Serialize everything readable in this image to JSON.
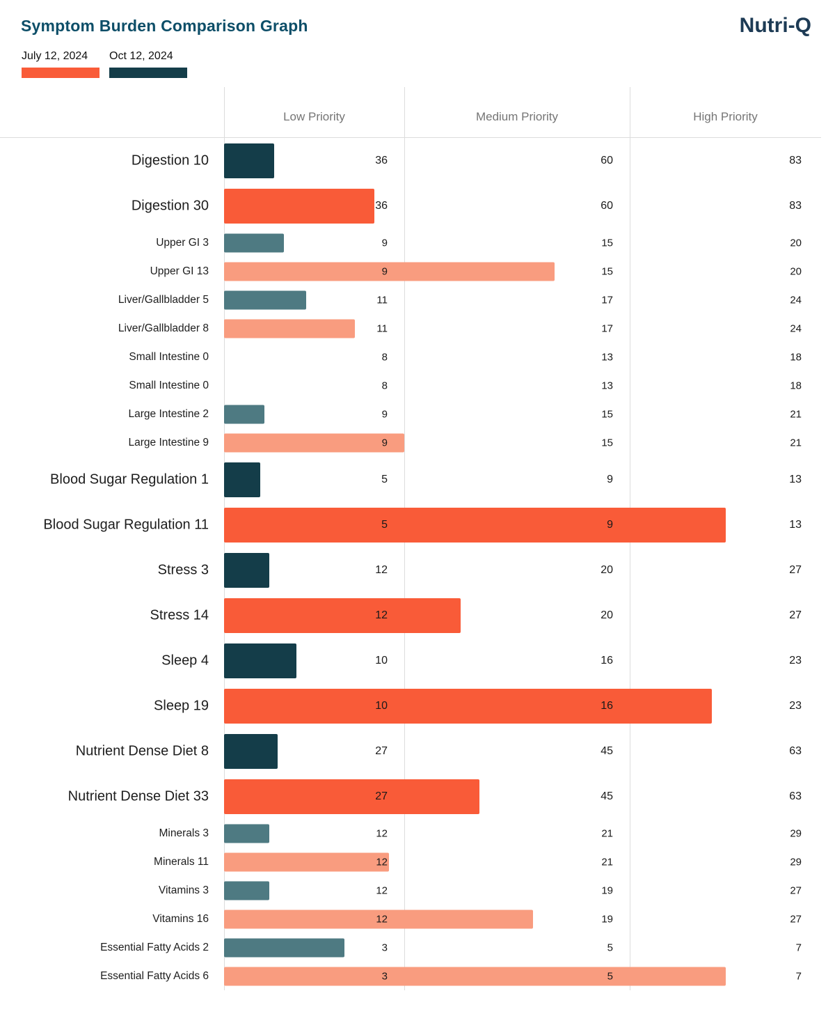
{
  "page": {
    "title": "Symptom Burden Comparison Graph",
    "brand": "Nutri-Q"
  },
  "legend": {
    "items": [
      {
        "label": "July 12, 2024",
        "series": "previous",
        "color": "#f95b38"
      },
      {
        "label": "Oct 12, 2024",
        "series": "current",
        "color": "#143d49"
      }
    ]
  },
  "colors": {
    "previous_major": "#f95b38",
    "previous_minor": "#f99c7f",
    "current_major": "#143d49",
    "current_minor": "#4e7a82",
    "grid_color": "#dcdcdc",
    "header_text": "#757575",
    "title_text": "#0d4e68",
    "brand_text": "#1d3b55",
    "label_text": "#1d1d1d",
    "number_text": "#1a1a1a"
  },
  "chart_data": {
    "type": "bar",
    "orientation": "horizontal",
    "title": "Symptom Burden Comparison Graph",
    "column_headers": [
      "Low Priority",
      "Medium Priority",
      "High Priority"
    ],
    "series_names": {
      "previous": "July 12, 2024",
      "current": "Oct 12, 2024"
    },
    "value_scale_note": "Bar length interpolates the value across the Low/Medium/High threshold sections; threshold numbers are printed at the right edge of each priority column.",
    "rows": [
      {
        "label": "Digestion 10",
        "value": 10,
        "thresholds": [
          36,
          60,
          83
        ],
        "series": "current",
        "size": "major"
      },
      {
        "label": "Digestion 30",
        "value": 30,
        "thresholds": [
          36,
          60,
          83
        ],
        "series": "previous",
        "size": "major"
      },
      {
        "label": "Upper GI 3",
        "value": 3,
        "thresholds": [
          9,
          15,
          20
        ],
        "series": "current",
        "size": "minor"
      },
      {
        "label": "Upper GI 13",
        "value": 13,
        "thresholds": [
          9,
          15,
          20
        ],
        "series": "previous",
        "size": "minor"
      },
      {
        "label": "Liver/Gallbladder 5",
        "value": 5,
        "thresholds": [
          11,
          17,
          24
        ],
        "series": "current",
        "size": "minor"
      },
      {
        "label": "Liver/Gallbladder 8",
        "value": 8,
        "thresholds": [
          11,
          17,
          24
        ],
        "series": "previous",
        "size": "minor"
      },
      {
        "label": "Small Intestine 0",
        "value": 0,
        "thresholds": [
          8,
          13,
          18
        ],
        "series": "current",
        "size": "minor"
      },
      {
        "label": "Small Intestine 0",
        "value": 0,
        "thresholds": [
          8,
          13,
          18
        ],
        "series": "previous",
        "size": "minor"
      },
      {
        "label": "Large Intestine 2",
        "value": 2,
        "thresholds": [
          9,
          15,
          21
        ],
        "series": "current",
        "size": "minor"
      },
      {
        "label": "Large Intestine 9",
        "value": 9,
        "thresholds": [
          9,
          15,
          21
        ],
        "series": "previous",
        "size": "minor"
      },
      {
        "label": "Blood Sugar Regulation 1",
        "value": 1,
        "thresholds": [
          5,
          9,
          13
        ],
        "series": "current",
        "size": "major"
      },
      {
        "label": "Blood Sugar Regulation 11",
        "value": 11,
        "thresholds": [
          5,
          9,
          13
        ],
        "series": "previous",
        "size": "major"
      },
      {
        "label": "Stress 3",
        "value": 3,
        "thresholds": [
          12,
          20,
          27
        ],
        "series": "current",
        "size": "major"
      },
      {
        "label": "Stress 14",
        "value": 14,
        "thresholds": [
          12,
          20,
          27
        ],
        "series": "previous",
        "size": "major"
      },
      {
        "label": "Sleep 4",
        "value": 4,
        "thresholds": [
          10,
          16,
          23
        ],
        "series": "current",
        "size": "major"
      },
      {
        "label": "Sleep 19",
        "value": 19,
        "thresholds": [
          10,
          16,
          23
        ],
        "series": "previous",
        "size": "major"
      },
      {
        "label": "Nutrient Dense Diet 8",
        "value": 8,
        "thresholds": [
          27,
          45,
          63
        ],
        "series": "current",
        "size": "major"
      },
      {
        "label": "Nutrient Dense Diet 33",
        "value": 33,
        "thresholds": [
          27,
          45,
          63
        ],
        "series": "previous",
        "size": "major"
      },
      {
        "label": "Minerals 3",
        "value": 3,
        "thresholds": [
          12,
          21,
          29
        ],
        "series": "current",
        "size": "minor"
      },
      {
        "label": "Minerals 11",
        "value": 11,
        "thresholds": [
          12,
          21,
          29
        ],
        "series": "previous",
        "size": "minor"
      },
      {
        "label": "Vitamins 3",
        "value": 3,
        "thresholds": [
          12,
          19,
          27
        ],
        "series": "current",
        "size": "minor"
      },
      {
        "label": "Vitamins 16",
        "value": 16,
        "thresholds": [
          12,
          19,
          27
        ],
        "series": "previous",
        "size": "minor"
      },
      {
        "label": "Essential Fatty Acids 2",
        "value": 2,
        "thresholds": [
          3,
          5,
          7
        ],
        "series": "current",
        "size": "minor"
      },
      {
        "label": "Essential Fatty Acids 6",
        "value": 6,
        "thresholds": [
          3,
          5,
          7
        ],
        "series": "previous",
        "size": "minor"
      }
    ]
  }
}
